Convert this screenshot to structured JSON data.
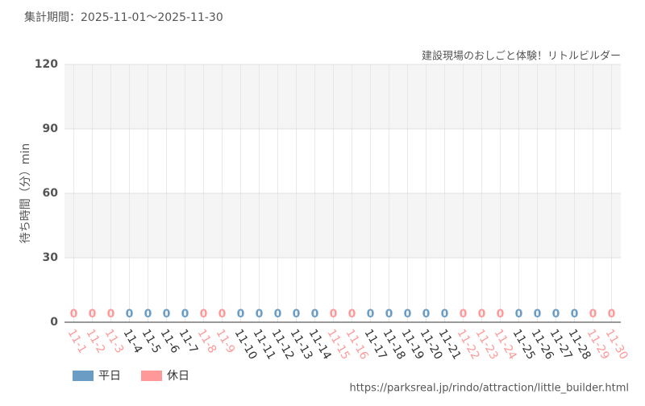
{
  "period": "集計期間：2025-11-01〜2025-11-30",
  "footer": "https://parksreal.jp/rindo/attraction/little_builder.html",
  "chart_data": {
    "type": "bar",
    "title": "建設現場のおしごと体験！リトルビルダー",
    "y_label": "待ち時間（分）min",
    "categories": [
      "11-1",
      "11-2",
      "11-3",
      "11-4",
      "11-5",
      "11-6",
      "11-7",
      "11-8",
      "11-9",
      "11-10",
      "11-11",
      "11-12",
      "11-13",
      "11-14",
      "11-15",
      "11-16",
      "11-17",
      "11-18",
      "11-19",
      "11-20",
      "11-21",
      "11-22",
      "11-23",
      "11-24",
      "11-25",
      "11-26",
      "11-27",
      "11-28",
      "11-29",
      "11-30"
    ],
    "series": [
      {
        "name": "平日",
        "color": "#6a9cc4",
        "values": [
          null,
          null,
          null,
          0,
          0,
          0,
          0,
          null,
          null,
          0,
          0,
          0,
          0,
          0,
          null,
          null,
          0,
          0,
          0,
          0,
          0,
          null,
          null,
          null,
          0,
          0,
          0,
          0,
          null,
          null
        ]
      },
      {
        "name": "休日",
        "color": "#ff9999",
        "values": [
          0,
          0,
          0,
          null,
          null,
          null,
          null,
          0,
          0,
          null,
          null,
          null,
          null,
          null,
          0,
          0,
          null,
          null,
          null,
          null,
          null,
          0,
          0,
          0,
          null,
          null,
          null,
          null,
          0,
          0
        ]
      }
    ],
    "ylim": [
      0,
      120
    ],
    "yticks": [
      0,
      30,
      60,
      90,
      120
    ],
    "grid": true
  }
}
